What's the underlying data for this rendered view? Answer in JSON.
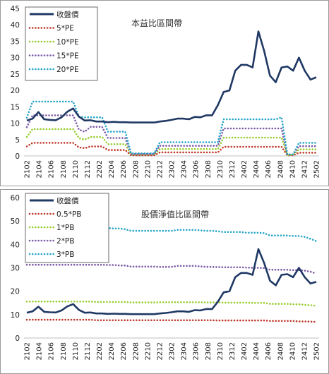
{
  "chart_data": [
    {
      "type": "line",
      "title": "本益比區間帶",
      "ylim": [
        0,
        45
      ],
      "yticks": [
        0,
        5,
        10,
        15,
        20,
        25,
        30,
        35,
        40,
        45
      ],
      "x_tick_labels": [
        "2102",
        "2104",
        "2106",
        "2108",
        "2110",
        "2112",
        "2202",
        "2204",
        "2206",
        "2208",
        "2210",
        "2212",
        "2302",
        "2304",
        "2306",
        "2308",
        "2310",
        "2312",
        "2402",
        "2404",
        "2406",
        "2408",
        "2410",
        "2412",
        "2502"
      ],
      "legend_position": "top-left",
      "grid": false,
      "series": [
        {
          "name": "收盤價",
          "style": "solid",
          "color": "#1f3864",
          "values": [
            10.8,
            11.4,
            13.4,
            11.2,
            11.0,
            10.9,
            11.8,
            13.5,
            14.5,
            12.0,
            10.8,
            10.9,
            10.5,
            10.5,
            10.3,
            10.4,
            10.3,
            10.3,
            10.2,
            10.2,
            10.2,
            10.2,
            10.2,
            10.5,
            10.7,
            11.0,
            11.4,
            11.4,
            11.2,
            11.9,
            11.8,
            12.4,
            12.4,
            15.5,
            19.5,
            20.0,
            26.0,
            27.8,
            27.8,
            27.0,
            38.0,
            32.0,
            24.5,
            22.5,
            27.0,
            27.3,
            26.0,
            30.0,
            26.0,
            23.3,
            24.0
          ]
        },
        {
          "name": "5*PE",
          "style": "dotted",
          "color": "#c0392b",
          "values": [
            2.9,
            4.0,
            4.0,
            4.0,
            4.0,
            4.0,
            4.0,
            4.0,
            4.0,
            2.6,
            2.4,
            2.9,
            2.9,
            2.9,
            1.8,
            1.8,
            1.8,
            1.8,
            0.2,
            0.2,
            0.2,
            0.2,
            0.2,
            1.1,
            1.1,
            1.1,
            1.1,
            1.1,
            1.1,
            1.1,
            1.1,
            1.1,
            1.1,
            1.1,
            2.8,
            2.8,
            2.8,
            2.8,
            2.8,
            2.8,
            2.8,
            2.8,
            2.8,
            2.8,
            2.8,
            0.2,
            0.2,
            1.0,
            1.0,
            1.0,
            1.0
          ]
        },
        {
          "name": "10*PE",
          "style": "dotted",
          "color": "#9acd32",
          "values": [
            5.8,
            8.2,
            8.2,
            8.2,
            8.2,
            8.2,
            8.2,
            8.2,
            8.2,
            5.4,
            5.0,
            5.8,
            5.8,
            5.8,
            3.6,
            3.6,
            3.6,
            3.6,
            0.4,
            0.4,
            0.4,
            0.4,
            0.4,
            2.1,
            2.1,
            2.1,
            2.1,
            2.1,
            2.1,
            2.1,
            2.1,
            2.1,
            2.1,
            2.1,
            5.6,
            5.6,
            5.6,
            5.6,
            5.6,
            5.6,
            5.6,
            5.6,
            5.6,
            5.6,
            5.6,
            0.3,
            0.3,
            2.0,
            2.0,
            2.0,
            2.0
          ]
        },
        {
          "name": "15*PE",
          "style": "dotted",
          "color": "#7b5aa6",
          "values": [
            8.8,
            12.4,
            12.4,
            12.4,
            12.4,
            12.4,
            12.4,
            12.4,
            12.4,
            8.0,
            7.4,
            8.9,
            8.9,
            8.9,
            5.5,
            5.5,
            5.5,
            5.5,
            0.6,
            0.6,
            0.6,
            0.6,
            0.6,
            3.1,
            3.1,
            3.1,
            3.1,
            3.1,
            3.1,
            3.1,
            3.1,
            3.1,
            3.1,
            3.1,
            8.4,
            8.4,
            8.4,
            8.4,
            8.4,
            8.4,
            8.4,
            8.4,
            8.4,
            8.4,
            8.4,
            0.4,
            0.4,
            3.0,
            3.0,
            3.0,
            3.0
          ]
        },
        {
          "name": "20*PE",
          "style": "dotted",
          "color": "#29a5c9",
          "values": [
            11.7,
            16.6,
            16.6,
            16.6,
            16.6,
            16.6,
            16.6,
            16.6,
            16.6,
            12.0,
            11.8,
            11.8,
            11.8,
            11.8,
            7.4,
            7.4,
            7.4,
            7.4,
            0.8,
            0.8,
            0.8,
            0.8,
            0.8,
            4.2,
            4.2,
            4.2,
            4.2,
            4.2,
            4.2,
            4.2,
            4.2,
            4.2,
            4.2,
            4.2,
            11.2,
            11.2,
            11.2,
            11.2,
            11.2,
            11.2,
            11.2,
            11.2,
            11.2,
            11.2,
            11.8,
            0.5,
            0.5,
            4.0,
            4.0,
            4.0,
            4.0
          ]
        }
      ]
    },
    {
      "type": "line",
      "title": "股價淨值比區間帶",
      "ylim": [
        0,
        60
      ],
      "yticks": [
        0,
        10,
        20,
        30,
        40,
        50,
        60
      ],
      "x_tick_labels": [
        "2102",
        "2104",
        "2106",
        "2108",
        "2110",
        "2112",
        "2202",
        "2204",
        "2206",
        "2208",
        "2210",
        "2212",
        "2302",
        "2304",
        "2306",
        "2308",
        "2310",
        "2312",
        "2402",
        "2404",
        "2406",
        "2408",
        "2410",
        "2412",
        "2502"
      ],
      "legend_position": "top-left",
      "grid": false,
      "series": [
        {
          "name": "收盤價",
          "style": "solid",
          "color": "#1f3864",
          "values": [
            10.8,
            11.4,
            13.4,
            11.2,
            11.0,
            10.9,
            11.8,
            13.5,
            14.5,
            12.0,
            10.8,
            10.9,
            10.5,
            10.5,
            10.3,
            10.4,
            10.3,
            10.3,
            10.2,
            10.2,
            10.2,
            10.2,
            10.2,
            10.5,
            10.7,
            11.0,
            11.4,
            11.4,
            11.2,
            11.9,
            11.8,
            12.4,
            12.4,
            15.5,
            19.5,
            20.0,
            26.0,
            27.8,
            27.8,
            27.0,
            38.0,
            32.0,
            24.5,
            22.5,
            27.0,
            27.3,
            26.0,
            30.0,
            26.0,
            23.3,
            24.0
          ]
        },
        {
          "name": "0.5*PB",
          "style": "dotted",
          "color": "#c0392b",
          "values": [
            7.8,
            7.8,
            7.8,
            7.8,
            7.8,
            7.8,
            7.8,
            7.8,
            7.8,
            7.8,
            7.8,
            7.8,
            7.6,
            7.6,
            7.6,
            7.6,
            7.6,
            7.6,
            7.6,
            7.6,
            7.6,
            7.6,
            7.6,
            7.6,
            7.6,
            7.6,
            7.6,
            7.6,
            7.6,
            7.6,
            7.6,
            7.6,
            7.6,
            7.5,
            7.5,
            7.5,
            7.5,
            7.5,
            7.5,
            7.5,
            7.5,
            7.5,
            7.3,
            7.3,
            7.3,
            7.3,
            7.3,
            7.1,
            7.1,
            7.0,
            6.9
          ]
        },
        {
          "name": "1*PB",
          "style": "dotted",
          "color": "#9acd32",
          "values": [
            15.6,
            15.6,
            15.6,
            15.6,
            15.6,
            15.6,
            15.6,
            15.6,
            15.6,
            15.6,
            15.6,
            15.6,
            15.4,
            15.4,
            15.4,
            15.4,
            15.4,
            15.4,
            15.2,
            15.2,
            15.2,
            15.2,
            15.2,
            15.3,
            15.3,
            15.3,
            15.3,
            15.3,
            15.3,
            15.3,
            15.3,
            15.2,
            15.2,
            15.2,
            15.1,
            15.1,
            15.1,
            15.1,
            15.1,
            15.0,
            15.0,
            15.0,
            14.6,
            14.6,
            14.6,
            14.6,
            14.4,
            14.4,
            14.2,
            14.0,
            13.8
          ]
        },
        {
          "name": "2*PB",
          "style": "dotted",
          "color": "#7b5aa6",
          "values": [
            31.3,
            31.3,
            31.3,
            31.3,
            31.3,
            31.3,
            31.3,
            31.3,
            31.3,
            31.3,
            31.3,
            31.3,
            31.3,
            31.3,
            31.2,
            31.2,
            31.0,
            31.0,
            30.5,
            30.5,
            30.5,
            30.5,
            30.5,
            30.4,
            30.4,
            30.4,
            30.8,
            30.8,
            30.8,
            30.8,
            30.6,
            30.4,
            30.4,
            30.3,
            30.2,
            30.2,
            30.2,
            30.2,
            30.1,
            30.0,
            30.0,
            29.9,
            29.2,
            29.2,
            29.2,
            29.2,
            29.0,
            29.0,
            28.8,
            28.3,
            27.6
          ]
        },
        {
          "name": "3*PB",
          "style": "dotted",
          "color": "#29a5c9",
          "values": [
            47.0,
            47.0,
            47.0,
            47.0,
            47.0,
            47.0,
            47.0,
            47.0,
            47.0,
            47.0,
            47.0,
            47.0,
            47.0,
            47.0,
            47.0,
            46.8,
            46.8,
            46.5,
            45.8,
            45.8,
            45.8,
            45.8,
            45.8,
            45.8,
            45.8,
            45.8,
            46.2,
            46.2,
            46.2,
            46.2,
            46.0,
            45.8,
            45.8,
            45.6,
            45.3,
            45.3,
            45.3,
            45.3,
            45.0,
            45.0,
            45.0,
            44.8,
            43.8,
            43.8,
            43.8,
            43.8,
            43.6,
            43.6,
            43.2,
            42.4,
            41.4
          ]
        }
      ]
    }
  ]
}
